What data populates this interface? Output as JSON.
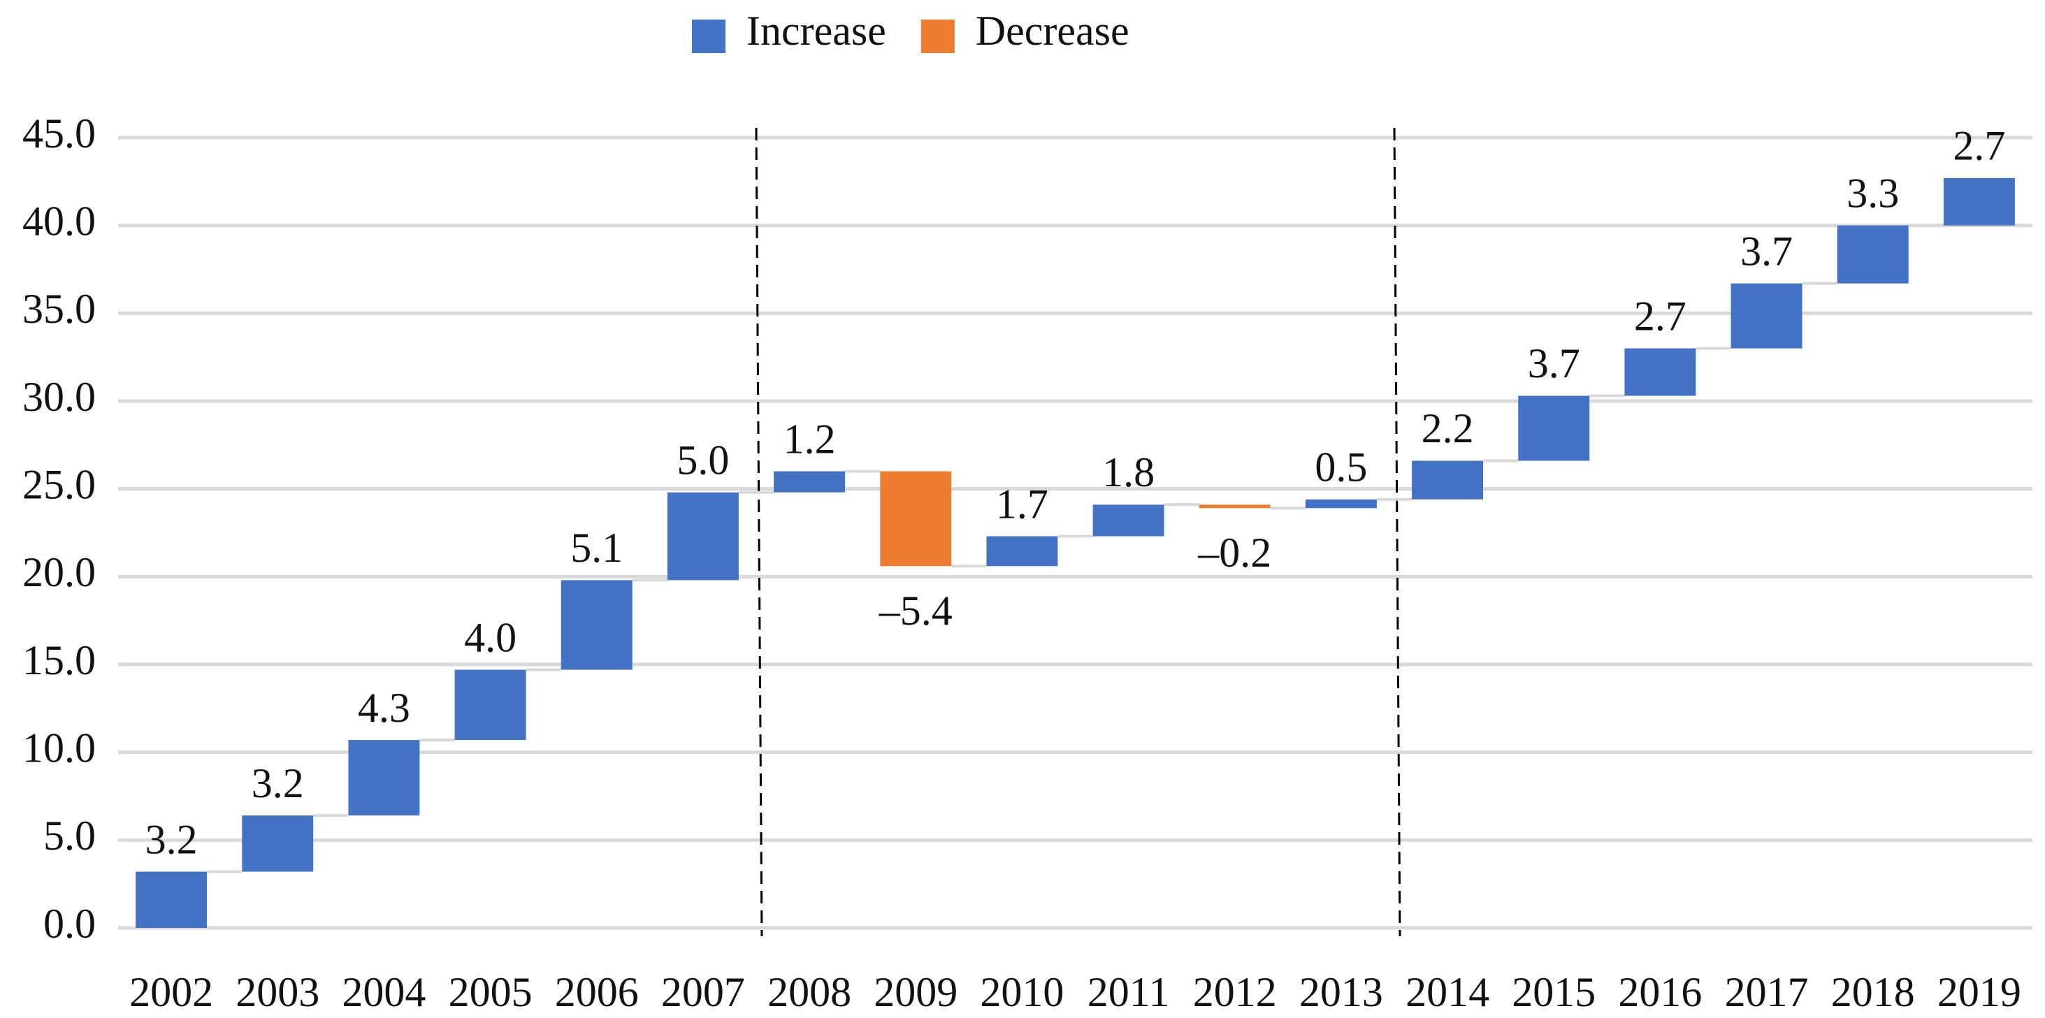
{
  "chart_data": {
    "type": "waterfall",
    "legend": [
      {
        "name": "Increase",
        "color": "#4472c4"
      },
      {
        "name": "Decrease",
        "color": "#ed7d31"
      }
    ],
    "categories": [
      "2002",
      "2003",
      "2004",
      "2005",
      "2006",
      "2007",
      "2008",
      "2009",
      "2010",
      "2011",
      "2012",
      "2013",
      "2014",
      "2015",
      "2016",
      "2017",
      "2018",
      "2019"
    ],
    "values": [
      3.2,
      3.2,
      4.3,
      4.0,
      5.1,
      5.0,
      1.2,
      -5.4,
      1.7,
      1.8,
      -0.2,
      0.5,
      2.2,
      3.7,
      2.7,
      3.7,
      3.3,
      2.7
    ],
    "value_labels": [
      "3.2",
      "3.2",
      "4.3",
      "4.0",
      "5.1",
      "5.0",
      "1.2",
      "–5.4",
      "1.7",
      "1.8",
      "–0.2",
      "0.5",
      "2.2",
      "3.7",
      "2.7",
      "3.7",
      "3.3",
      "2.7"
    ],
    "ylim": [
      0,
      45
    ],
    "yticks": [
      {
        "value": 0,
        "label": "0.0"
      },
      {
        "value": 5,
        "label": "5.0"
      },
      {
        "value": 10,
        "label": "10.0"
      },
      {
        "value": 15,
        "label": "15.0"
      },
      {
        "value": 20,
        "label": "20.0"
      },
      {
        "value": 25,
        "label": "25.0"
      },
      {
        "value": 30,
        "label": "30.0"
      },
      {
        "value": 35,
        "label": "35.0"
      },
      {
        "value": 40,
        "label": "40.0"
      },
      {
        "value": 45,
        "label": "45.0"
      }
    ],
    "grid": true
  }
}
